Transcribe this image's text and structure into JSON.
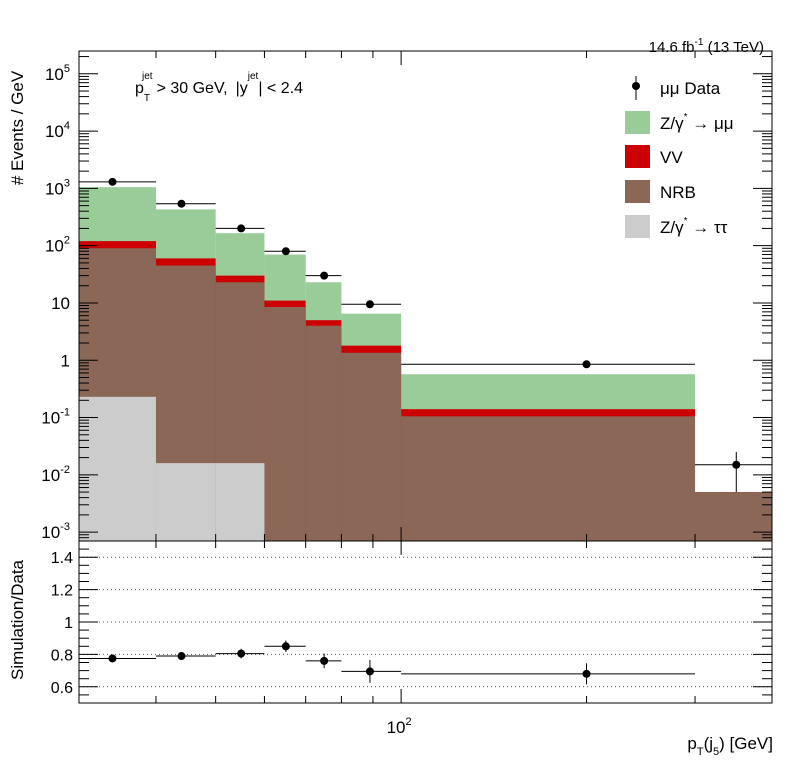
{
  "lumi_label": "14.6 fb",
  "lumi_exp": "-1",
  "lumi_energy": "(13 TeV)",
  "selection": {
    "pt_sym": "p",
    "pt_sub": "T",
    "pt_sup": "jet",
    "pt_cut": "> 30 GeV,",
    "y_open": "|y",
    "y_sup": "jet",
    "y_cut": "| < 2.4"
  },
  "axis_labels": {
    "top_y": "# Events / GeV",
    "bottom_y": "Simulation/Data",
    "x_main": "p",
    "x_sub1": "T",
    "x_mid": "(j",
    "x_sub2": "5",
    "x_tail": ") [GeV]"
  },
  "colors": {
    "zmm": "#99cc99",
    "vv": "#cc0000",
    "nrb": "#8b6758",
    "ztt": "#cccccc",
    "data": "#000000"
  },
  "legend": [
    {
      "key": "data",
      "label": "μμ Data"
    },
    {
      "key": "zmm",
      "label": "Z/γ",
      "sup": "*",
      "tail": " → μμ"
    },
    {
      "key": "vv",
      "label": "VV"
    },
    {
      "key": "nrb",
      "label": "NRB"
    },
    {
      "key": "ztt",
      "label": "Z/γ",
      "sup": "*",
      "tail": " → ττ"
    }
  ],
  "chart_data": {
    "type": "histogram",
    "x_scale": "log",
    "xlim": [
      30,
      400
    ],
    "bin_edges": [
      30,
      40,
      50,
      60,
      70,
      80,
      100,
      300,
      400
    ],
    "top": {
      "y_scale": "log",
      "ylim": [
        0.0007,
        250000
      ],
      "y_ticks": [
        {
          "v": 0.001,
          "m": "10",
          "e": "-3"
        },
        {
          "v": 0.01,
          "m": "10",
          "e": "-2"
        },
        {
          "v": 0.1,
          "m": "10",
          "e": "-1"
        },
        {
          "v": 1,
          "m": "1",
          "e": ""
        },
        {
          "v": 10,
          "m": "10",
          "e": ""
        },
        {
          "v": 100,
          "m": "10",
          "e": "2"
        },
        {
          "v": 1000,
          "m": "10",
          "e": "3"
        },
        {
          "v": 10000,
          "m": "10",
          "e": "4"
        },
        {
          "v": 100000,
          "m": "10",
          "e": "5"
        }
      ],
      "stack_totals": {
        "ztt": [
          0.23,
          0.016,
          0.016,
          0,
          0,
          0,
          0,
          0
        ],
        "nrb": [
          90,
          45,
          23,
          8.5,
          4,
          1.35,
          0.105,
          0.005
        ],
        "vv": [
          120,
          60,
          30,
          11,
          5,
          1.8,
          0.14,
          0.005
        ],
        "zmm": [
          1050,
          430,
          165,
          70,
          23,
          6.5,
          0.57,
          0.005
        ]
      },
      "data": {
        "x": [
          34,
          44,
          55,
          65,
          75,
          89,
          200,
          350
        ],
        "y": [
          1300,
          540,
          200,
          80,
          30,
          9.5,
          0.85,
          0.015
        ],
        "yerr_lo": [
          0,
          0,
          0,
          0,
          0,
          0,
          0,
          0.01
        ],
        "yerr_hi": [
          0,
          0,
          0,
          0,
          0,
          0,
          0,
          0.01
        ]
      }
    },
    "ratio": {
      "ylim": [
        0.5,
        1.5
      ],
      "y_ticks": [
        "0.6",
        "0.8",
        "1",
        "1.2",
        "1.4"
      ],
      "y_tick_values": [
        0.6,
        0.8,
        1.0,
        1.2,
        1.4
      ],
      "gridlines": [
        0.6,
        0.8,
        1.0,
        1.2,
        1.4
      ],
      "x": [
        34,
        44,
        55,
        65,
        75,
        89,
        200
      ],
      "y": [
        0.775,
        0.79,
        0.805,
        0.85,
        0.76,
        0.695,
        0.68
      ],
      "yerr": [
        0.02,
        0.02,
        0.03,
        0.035,
        0.045,
        0.07,
        0.065
      ]
    },
    "x_tick_labels": [
      {
        "v": 100,
        "label": "10",
        "e": "2"
      }
    ]
  }
}
